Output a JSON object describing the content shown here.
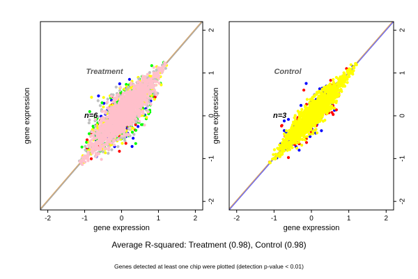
{
  "chart_data": [
    {
      "type": "scatter",
      "title": "Treatment",
      "annotation": "n=6",
      "xlabel": "gene expression",
      "ylabel": "gene expression",
      "xlim": [
        -2.2,
        2.2
      ],
      "ylim": [
        -2.2,
        2.2
      ],
      "xticks": [
        "-2",
        "-1",
        "0",
        "1",
        "2"
      ],
      "yticks": [
        "-2",
        "-1",
        "0",
        "1",
        "2"
      ],
      "ticks": [
        -2,
        -1,
        0,
        1,
        2
      ],
      "grid": false,
      "point_cloud": {
        "center": [
          0.05,
          0.05
        ],
        "along_diagonal_extent": [
          -1.1,
          1.2
        ],
        "spread_across_diagonal": 0.28
      },
      "series_colors": [
        "#0000ff",
        "#ff0000",
        "#00ff00",
        "#ffff00",
        "#c0c0c0",
        "#ffc0cb"
      ],
      "reference_lines": [
        {
          "type": "identity",
          "color": "#a0a0a0"
        },
        {
          "type": "fit",
          "color": "#d4a060"
        }
      ]
    },
    {
      "type": "scatter",
      "title": "Control",
      "annotation": "n=3",
      "xlabel": "gene expression",
      "ylabel": "gene expression",
      "xlim": [
        -2.2,
        2.2
      ],
      "ylim": [
        -2.2,
        2.2
      ],
      "xticks": [
        "-2",
        "-1",
        "0",
        "1",
        "2"
      ],
      "yticks": [
        "-2",
        "-1",
        "0",
        "1",
        "2"
      ],
      "ticks": [
        -2,
        -1,
        0,
        1,
        2
      ],
      "grid": false,
      "point_cloud": {
        "center": [
          0.05,
          0.05
        ],
        "along_diagonal_extent": [
          -1.1,
          1.2
        ],
        "spread_across_diagonal": 0.2
      },
      "series_colors": [
        "#0000ff",
        "#ff0000",
        "#ffff00"
      ],
      "reference_lines": [
        {
          "type": "identity",
          "color": "#5050ff"
        },
        {
          "type": "fit",
          "color": "#d4a060"
        }
      ]
    }
  ],
  "caption": "Average R-squared: Treatment (0.98), Control (0.98)",
  "note": "Genes detected at least one chip were plotted (detection p-value < 0.01)"
}
